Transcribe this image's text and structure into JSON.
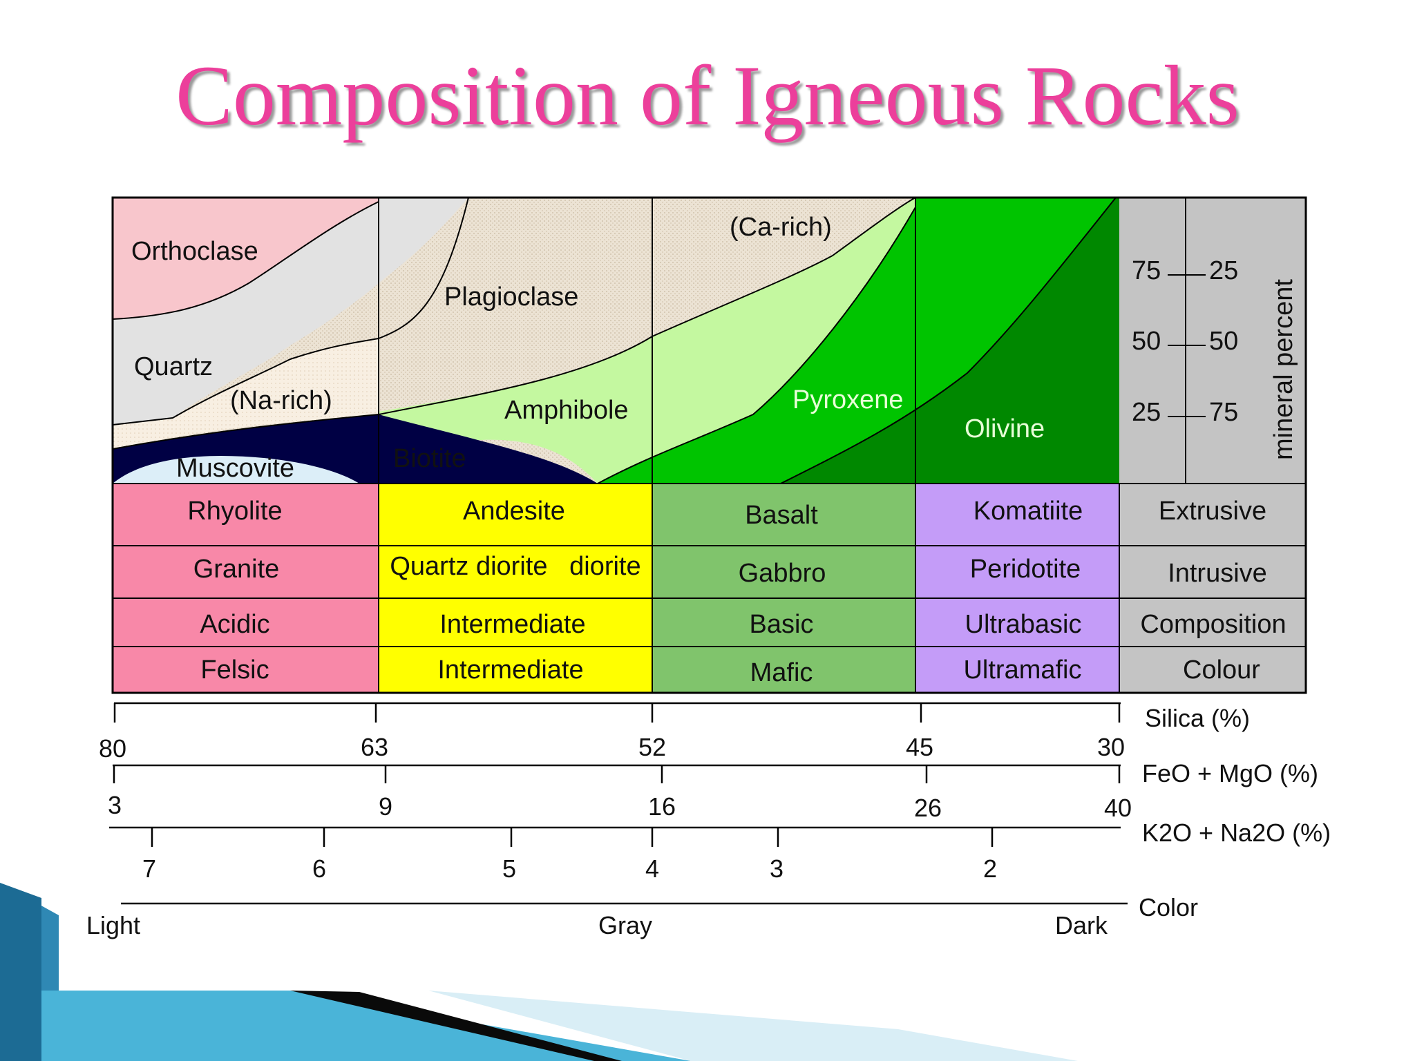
{
  "title": "Composition of Igneous Rocks",
  "minerals": {
    "orthoclase": "Orthoclase",
    "quartz": "Quartz",
    "plagioclase": "Plagioclase",
    "ca_rich": "(Ca-rich)",
    "na_rich": "(Na-rich)",
    "amphibole": "Amphibole",
    "pyroxene": "Pyroxene",
    "olivine": "Olivine",
    "biotite": "Biotite",
    "muscovite": "Muscovite"
  },
  "mineral_scale": {
    "left_ticks": [
      "75",
      "50",
      "25"
    ],
    "right_ticks": [
      "25",
      "50",
      "75"
    ],
    "label": "mineral percent"
  },
  "table": {
    "rows": [
      {
        "cells": [
          "Rhyolite",
          "Andesite",
          "Basalt",
          "Komatiite"
        ],
        "label": "Extrusive"
      },
      {
        "cells": [
          "Granite",
          "Quartz diorite   diorite",
          "Gabbro",
          "Peridotite"
        ],
        "label": "Intrusive"
      },
      {
        "cells": [
          "Acidic",
          "Intermediate",
          "Basic",
          "Ultrabasic"
        ],
        "label": "Composition"
      },
      {
        "cells": [
          "Felsic",
          "Intermediate",
          "Mafic",
          "Ultramafic"
        ],
        "label": "Colour"
      }
    ]
  },
  "scales": {
    "silica": {
      "label": "Silica (%)",
      "ticks": [
        "80",
        "63",
        "52",
        "45",
        "30"
      ]
    },
    "femg": {
      "label": "FeO + MgO (%)",
      "ticks": [
        "3",
        "9",
        "16",
        "26",
        "40"
      ]
    },
    "alkali": {
      "label": "K2O + Na2O (%)",
      "ticks": [
        "7",
        "6",
        "5",
        "4",
        "3",
        "2"
      ]
    },
    "color": {
      "label": "Color",
      "ticks": [
        "Light",
        "Gray",
        "Dark"
      ]
    }
  },
  "colors": {
    "title": "#ec3f9b",
    "felsic": "#f888a8",
    "intermediate": "#ffff00",
    "mafic": "#80c46c",
    "ultramafic": "#c49cf8",
    "label_col": "#c4c4c4",
    "pyroxene": "#00c400",
    "olivine": "#008800",
    "biotite": "#000040"
  }
}
